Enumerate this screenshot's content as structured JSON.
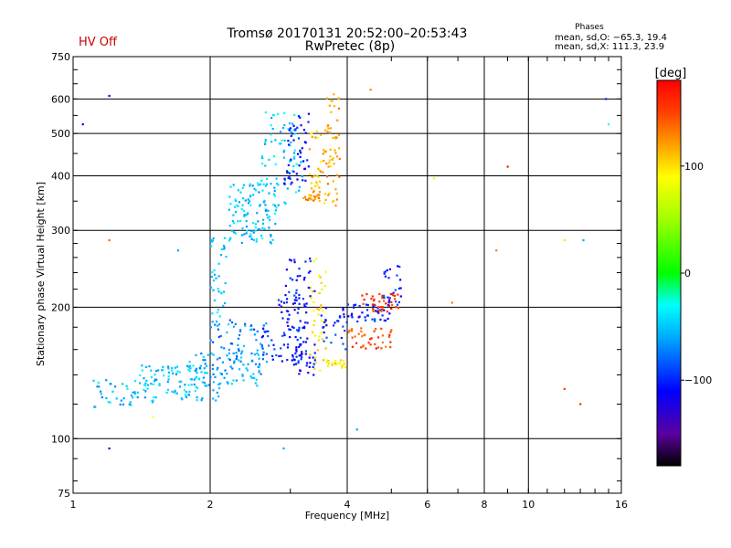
{
  "chart_data": {
    "type": "scatter",
    "title": "Tromsø 20170131 20:52:00–20:53:43",
    "subtitle": "RwPretec (8p)",
    "status_text": "HV Off",
    "status_color": "#cc0000",
    "stats": {
      "heading": "Phases",
      "line_o": "mean, sd,O: −65.3, 19.4",
      "line_x": "mean, sd,X: 111.3, 23.9"
    },
    "xlabel": "Frequency [MHz]",
    "ylabel": "Stationary phase Virtual Height [km]",
    "x_scale": "log",
    "y_scale": "log",
    "xlim": [
      1,
      16
    ],
    "ylim": [
      75,
      750
    ],
    "grid": true,
    "x_ticks": [
      {
        "v": 1,
        "label": "1"
      },
      {
        "v": 2,
        "label": "2"
      },
      {
        "v": 4,
        "label": "4"
      },
      {
        "v": 6,
        "label": "6"
      },
      {
        "v": 8,
        "label": "8"
      },
      {
        "v": 10,
        "label": "10"
      },
      {
        "v": 16,
        "label": "16"
      }
    ],
    "y_ticks": [
      {
        "v": 75,
        "label": "75"
      },
      {
        "v": 100,
        "label": "100"
      },
      {
        "v": 200,
        "label": "200"
      },
      {
        "v": 300,
        "label": "300"
      },
      {
        "v": 400,
        "label": "400"
      },
      {
        "v": 500,
        "label": "500"
      },
      {
        "v": 600,
        "label": "600"
      },
      {
        "v": 750,
        "label": "750"
      }
    ],
    "colorbar": {
      "label": "[deg]",
      "range": [
        -180,
        180
      ],
      "ticks": [
        {
          "v": 100,
          "label": "100"
        },
        {
          "v": 0,
          "label": "0"
        },
        {
          "v": -100,
          "label": "−100"
        }
      ],
      "stops": [
        {
          "v": -180,
          "color": "#000000"
        },
        {
          "v": -150,
          "color": "#5a00a0"
        },
        {
          "v": -110,
          "color": "#0000ff"
        },
        {
          "v": -60,
          "color": "#00aaff"
        },
        {
          "v": -30,
          "color": "#00ffff"
        },
        {
          "v": 0,
          "color": "#00ff00"
        },
        {
          "v": 50,
          "color": "#a0ff00"
        },
        {
          "v": 90,
          "color": "#ffff00"
        },
        {
          "v": 120,
          "color": "#ffa000"
        },
        {
          "v": 150,
          "color": "#ff4000"
        },
        {
          "v": 180,
          "color": "#ff0000"
        }
      ]
    },
    "clusters": [
      {
        "f0": 1.1,
        "f1": 1.55,
        "h0": 118,
        "h1": 138,
        "phase": -55,
        "n": 50
      },
      {
        "f0": 1.4,
        "f1": 2.0,
        "h0": 132,
        "h1": 148,
        "phase": -45,
        "n": 60
      },
      {
        "f0": 1.6,
        "f1": 2.1,
        "h0": 122,
        "h1": 132,
        "phase": -50,
        "n": 30
      },
      {
        "f0": 1.8,
        "f1": 2.6,
        "h0": 132,
        "h1": 158,
        "phase": -60,
        "n": 90
      },
      {
        "f0": 2.0,
        "f1": 2.7,
        "h0": 150,
        "h1": 190,
        "phase": -70,
        "n": 60
      },
      {
        "f0": 2.0,
        "f1": 2.2,
        "h0": 180,
        "h1": 290,
        "phase": -50,
        "n": 40
      },
      {
        "f0": 2.6,
        "f1": 3.2,
        "h0": 150,
        "h1": 180,
        "phase": -100,
        "n": 40
      },
      {
        "f0": 2.8,
        "f1": 3.3,
        "h0": 170,
        "h1": 210,
        "phase": -110,
        "n": 40
      },
      {
        "f0": 2.9,
        "f1": 3.4,
        "h0": 210,
        "h1": 260,
        "phase": -105,
        "n": 30
      },
      {
        "f0": 2.2,
        "f1": 2.8,
        "h0": 280,
        "h1": 390,
        "phase": -50,
        "n": 120
      },
      {
        "f0": 2.6,
        "f1": 3.2,
        "h0": 340,
        "h1": 560,
        "phase": -45,
        "n": 70
      },
      {
        "f0": 2.9,
        "f1": 3.3,
        "h0": 380,
        "h1": 560,
        "phase": -110,
        "n": 50
      },
      {
        "f0": 3.3,
        "f1": 3.8,
        "h0": 340,
        "h1": 520,
        "phase": 110,
        "n": 60
      },
      {
        "f0": 3.2,
        "f1": 3.5,
        "h0": 350,
        "h1": 370,
        "phase": 125,
        "n": 20
      },
      {
        "f0": 3.6,
        "f1": 3.85,
        "h0": 380,
        "h1": 640,
        "phase": 120,
        "n": 30
      },
      {
        "f0": 3.0,
        "f1": 3.4,
        "h0": 140,
        "h1": 170,
        "phase": -110,
        "n": 40
      },
      {
        "f0": 3.3,
        "f1": 3.6,
        "h0": 140,
        "h1": 260,
        "phase": 95,
        "n": 40
      },
      {
        "f0": 3.6,
        "f1": 4.0,
        "h0": 145,
        "h1": 152,
        "phase": 95,
        "n": 25
      },
      {
        "f0": 3.5,
        "f1": 4.0,
        "h0": 160,
        "h1": 200,
        "phase": -100,
        "n": 30
      },
      {
        "f0": 4.0,
        "f1": 5.0,
        "h0": 185,
        "h1": 205,
        "phase": -110,
        "n": 40
      },
      {
        "f0": 4.0,
        "f1": 5.0,
        "h0": 160,
        "h1": 180,
        "phase": 150,
        "n": 40
      },
      {
        "f0": 4.3,
        "f1": 5.2,
        "h0": 195,
        "h1": 215,
        "phase": 155,
        "n": 40
      },
      {
        "f0": 4.8,
        "f1": 5.3,
        "h0": 200,
        "h1": 250,
        "phase": -100,
        "n": 25
      }
    ],
    "isolated_points": [
      {
        "x": 1.05,
        "y": 525,
        "phase": -110
      },
      {
        "x": 1.2,
        "y": 610,
        "phase": -110
      },
      {
        "x": 1.2,
        "y": 95,
        "phase": -120
      },
      {
        "x": 1.2,
        "y": 285,
        "phase": 140
      },
      {
        "x": 1.5,
        "y": 112,
        "phase": 90
      },
      {
        "x": 1.7,
        "y": 270,
        "phase": -60
      },
      {
        "x": 2.9,
        "y": 95,
        "phase": -60
      },
      {
        "x": 4.2,
        "y": 105,
        "phase": -60
      },
      {
        "x": 4.5,
        "y": 630,
        "phase": 130
      },
      {
        "x": 6.2,
        "y": 395,
        "phase": 80
      },
      {
        "x": 6.8,
        "y": 205,
        "phase": 130
      },
      {
        "x": 8.5,
        "y": 270,
        "phase": 130
      },
      {
        "x": 9.0,
        "y": 420,
        "phase": 170
      },
      {
        "x": 12.0,
        "y": 285,
        "phase": 100
      },
      {
        "x": 12.0,
        "y": 130,
        "phase": 150
      },
      {
        "x": 13.0,
        "y": 120,
        "phase": 160
      },
      {
        "x": 13.2,
        "y": 285,
        "phase": -60
      },
      {
        "x": 14.8,
        "y": 600,
        "phase": -100
      },
      {
        "x": 15.0,
        "y": 525,
        "phase": -30
      }
    ]
  }
}
